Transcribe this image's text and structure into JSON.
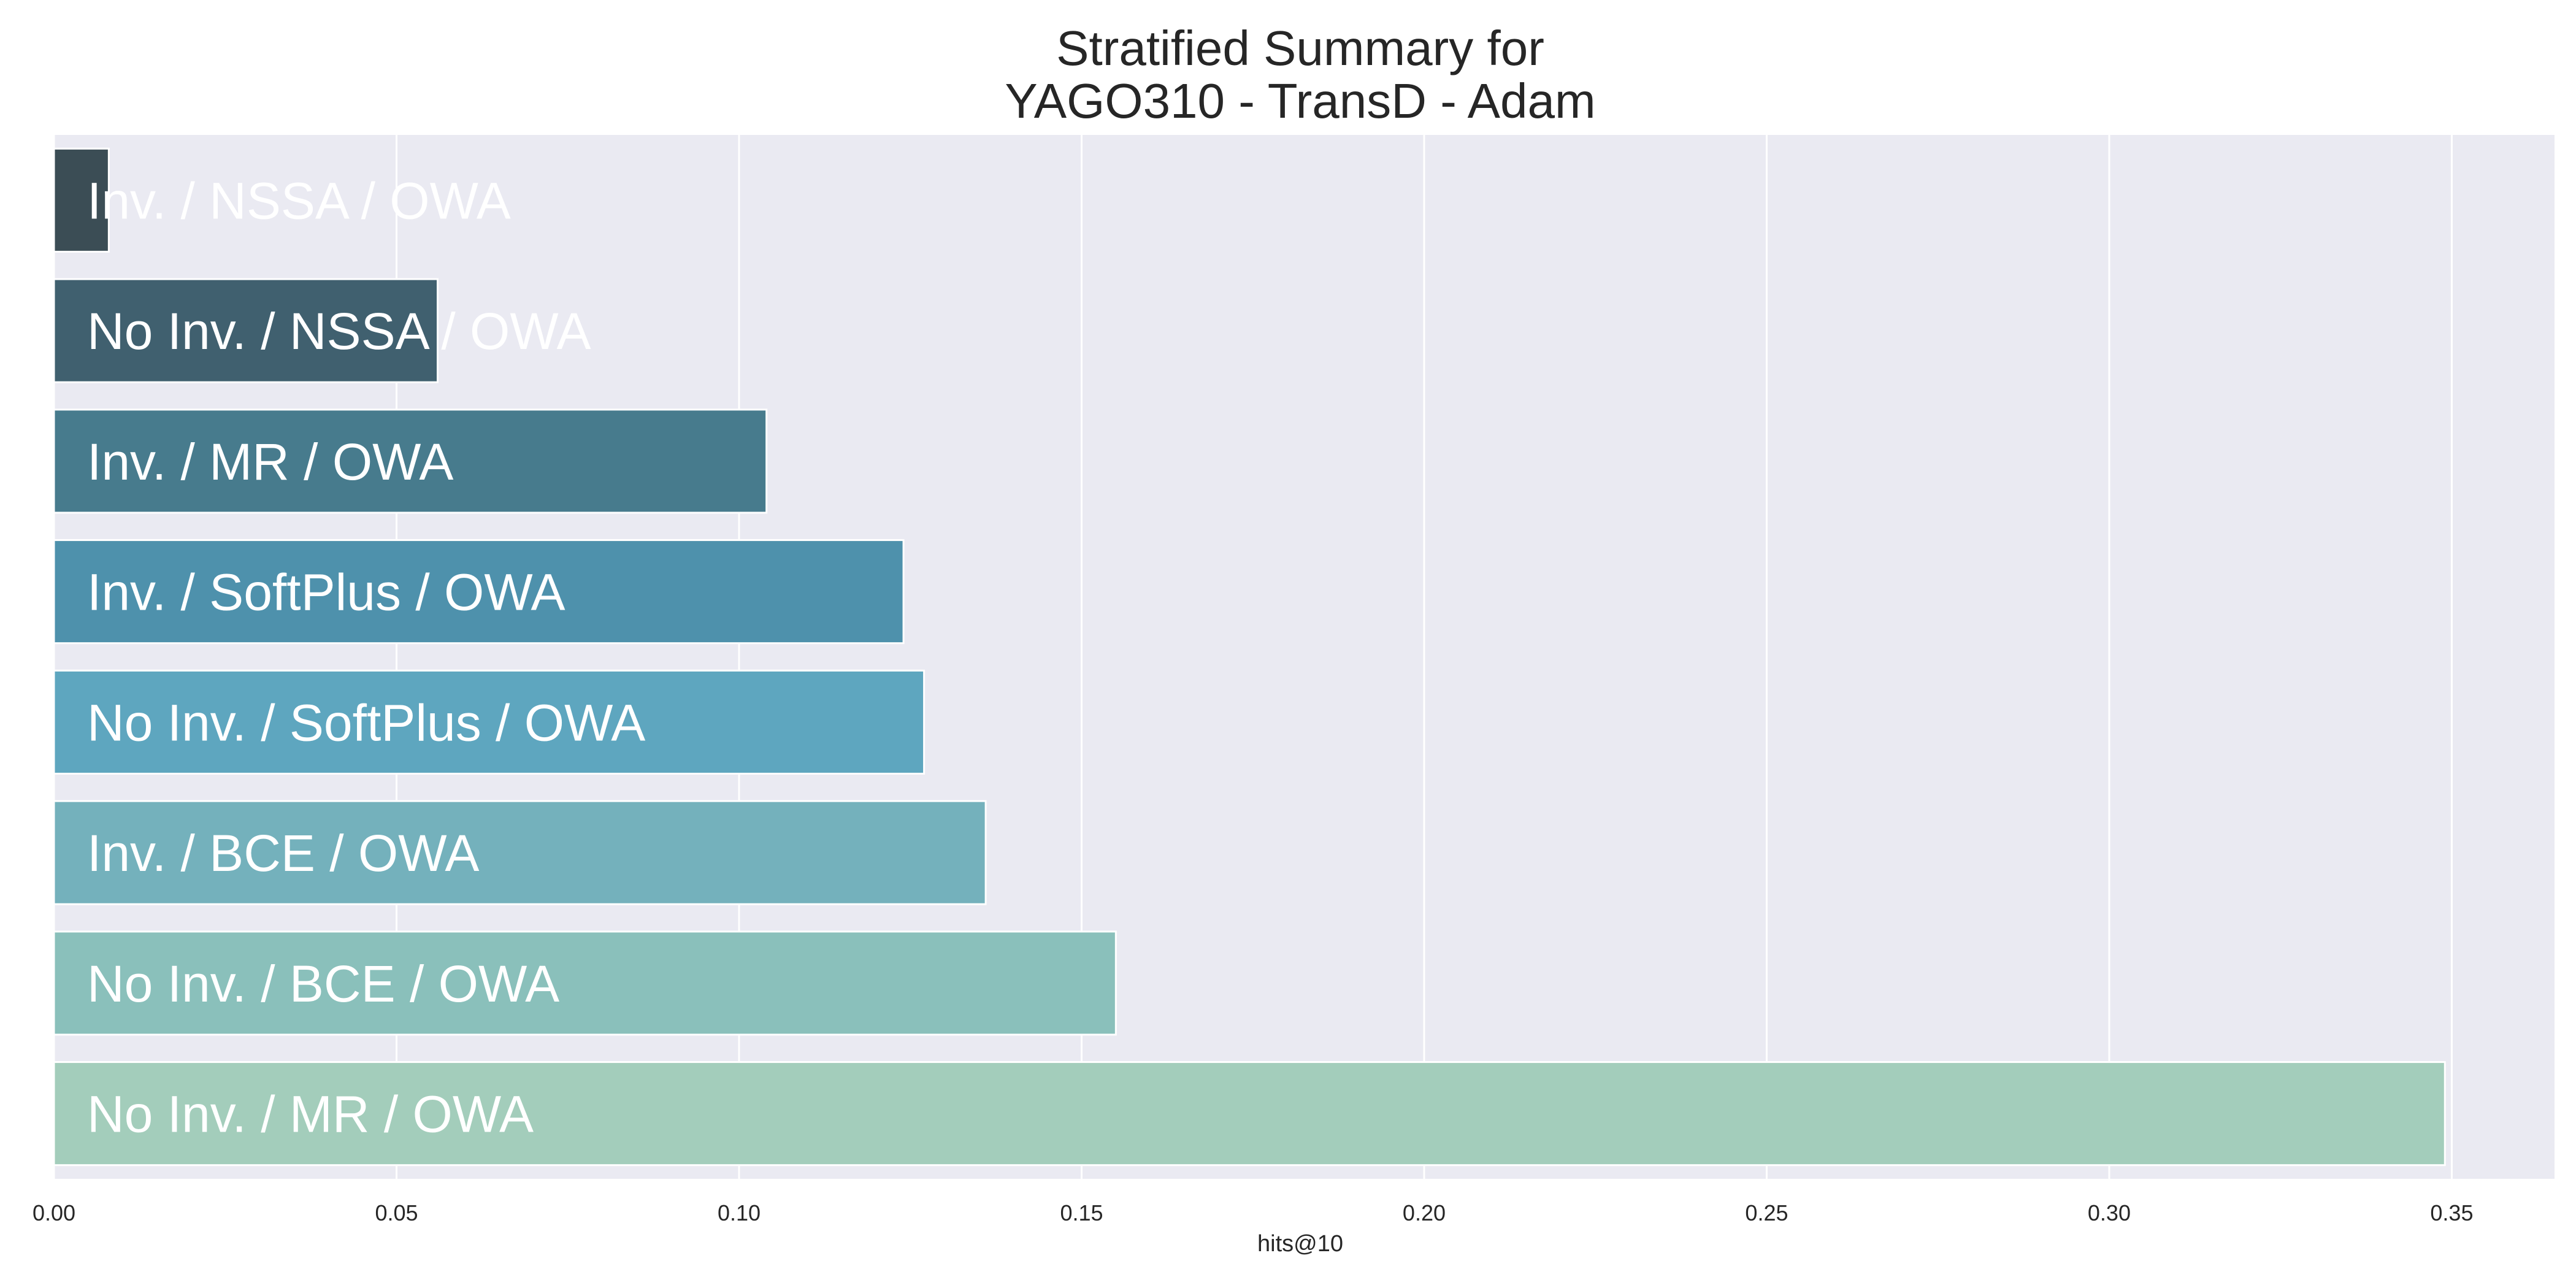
{
  "chart_data": {
    "type": "bar",
    "orientation": "horizontal",
    "title": "Stratified Summary for",
    "subtitle": "YAGO310 - TransD - Adam",
    "xlabel": "hits@10",
    "ylabel": "",
    "xlim": [
      0,
      0.365
    ],
    "xticks": [
      "0.00",
      "0.05",
      "0.10",
      "0.15",
      "0.20",
      "0.25",
      "0.30",
      "0.35"
    ],
    "grid": true,
    "categories": [
      "Inv. / NSSA / OWA",
      "No Inv. / NSSA / OWA",
      "Inv. / MR / OWA",
      "Inv. / SoftPlus / OWA",
      "No Inv. / SoftPlus / OWA",
      "Inv. / BCE / OWA",
      "No Inv. / BCE / OWA",
      "No Inv. / MR / OWA"
    ],
    "values": [
      0.008,
      0.056,
      0.104,
      0.124,
      0.127,
      0.136,
      0.155,
      0.349
    ],
    "colors": [
      "#3b4d55",
      "#40606f",
      "#477b8d",
      "#4e91ac",
      "#5ea6bf",
      "#74b1bc",
      "#8ac0bb",
      "#a3cdbb"
    ],
    "background_color": "#eaeaf2",
    "grid_color": "#ffffff"
  }
}
